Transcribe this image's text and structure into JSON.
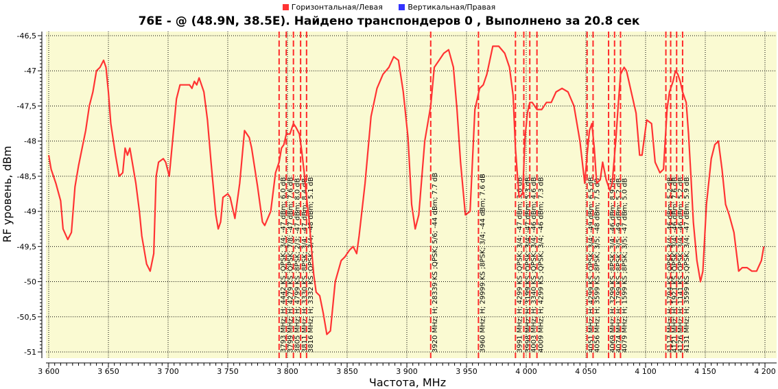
{
  "legend": [
    {
      "label": "Горизонтальная/Левая",
      "color": "#ff3333"
    },
    {
      "label": "Вертикальная/Правая",
      "color": "#3333ff"
    }
  ],
  "title": "76E -  @  (48.9N, 38.5E). Найдено транспондеров 0 , Выполнено за 20.8 сек",
  "chart_data": {
    "type": "line",
    "title": "76E -  @  (48.9N, 38.5E). Найдено транспондеров 0 , Выполнено за 20.8 сек",
    "xlabel": "Частота, MHz",
    "ylabel": "RF уровень, dBm",
    "xlim": [
      3600,
      4200
    ],
    "ylim": [
      -51,
      -46.5
    ],
    "x_ticks": [
      3600,
      3650,
      3700,
      3750,
      3800,
      3850,
      3900,
      3950,
      4000,
      4050,
      4100,
      4150,
      4200
    ],
    "x_tick_labels": [
      "3 600",
      "3 650",
      "3 700",
      "3 750",
      "3 800",
      "3 850",
      "3 900",
      "3 950",
      "4 000",
      "4 050",
      "4 100",
      "4 150",
      "4 200"
    ],
    "y_ticks": [
      -46.5,
      -47,
      -47.5,
      -48,
      -48.5,
      -49,
      -49.5,
      -50,
      -50.5,
      -51
    ],
    "y_tick_labels": [
      "-46,5",
      "-47",
      "-47,5",
      "-48",
      "-48,5",
      "-49",
      "-49,5",
      "-50",
      "-50,5",
      "-51"
    ],
    "grid": true,
    "legend_position": "top",
    "background": "#fafad2",
    "series": [
      {
        "name": "Горизонтальная/Левая",
        "color": "#ff3333",
        "x": [
          3600,
          3602,
          3606,
          3610,
          3612,
          3616,
          3619,
          3622,
          3625,
          3628,
          3631,
          3634,
          3637,
          3640,
          3643,
          3646,
          3648,
          3650,
          3652,
          3656,
          3659,
          3662,
          3664,
          3666,
          3668,
          3670,
          3673,
          3676,
          3678,
          3682,
          3685,
          3688,
          3690,
          3692,
          3696,
          3698,
          3701,
          3704,
          3707,
          3710,
          3714,
          3718,
          3720,
          3722,
          3724,
          3726,
          3728,
          3730,
          3733,
          3736,
          3740,
          3742,
          3744,
          3746,
          3750,
          3752,
          3756,
          3760,
          3764,
          3768,
          3770,
          3775,
          3779,
          3781,
          3786,
          3790,
          3793,
          3795,
          3797,
          3799,
          3802,
          3805,
          3807,
          3810,
          3812,
          3814,
          3816,
          3818,
          3820,
          3822,
          3824,
          3827,
          3830,
          3833,
          3836,
          3840,
          3845,
          3848,
          3852,
          3855,
          3858,
          3860,
          3865,
          3870,
          3875,
          3880,
          3885,
          3889,
          3893,
          3897,
          3901,
          3904,
          3907,
          3910,
          3915,
          3920,
          3923,
          3927,
          3931,
          3935,
          3939,
          3942,
          3945,
          3949,
          3953,
          3957,
          3961,
          3964,
          3967,
          3972,
          3977,
          3982,
          3986,
          3989,
          3991,
          3994,
          3997,
          3999,
          4001,
          4003,
          4005,
          4009,
          4013,
          4017,
          4021,
          4025,
          4030,
          4035,
          4040,
          4045,
          4049,
          4051,
          4053,
          4055,
          4057,
          4059,
          4062,
          4064,
          4067,
          4070,
          4072,
          4075,
          4077,
          4079,
          4082,
          4084,
          4088,
          4092,
          4095,
          4097,
          4101,
          4105,
          4108,
          4112,
          4115,
          4118,
          4120,
          4123,
          4125,
          4127,
          4129,
          4131,
          4134,
          4136,
          4138,
          4140,
          4143,
          4146,
          4148,
          4151,
          4155,
          4158,
          4161,
          4164,
          4167,
          4170,
          4174,
          4178,
          4181,
          4185,
          4189,
          4193,
          4197,
          4199
        ],
        "y": [
          -48.2,
          -48.4,
          -48.6,
          -48.85,
          -49.25,
          -49.4,
          -49.3,
          -48.65,
          -48.35,
          -48.1,
          -47.85,
          -47.5,
          -47.3,
          -47.0,
          -46.95,
          -46.85,
          -46.95,
          -47.3,
          -47.75,
          -48.2,
          -48.5,
          -48.45,
          -48.1,
          -48.2,
          -48.1,
          -48.3,
          -48.6,
          -49.0,
          -49.35,
          -49.75,
          -49.85,
          -49.6,
          -48.5,
          -48.3,
          -48.25,
          -48.3,
          -48.5,
          -47.95,
          -47.4,
          -47.2,
          -47.2,
          -47.2,
          -47.25,
          -47.15,
          -47.2,
          -47.1,
          -47.2,
          -47.3,
          -47.7,
          -48.3,
          -49.05,
          -49.25,
          -49.15,
          -48.8,
          -48.75,
          -48.8,
          -49.1,
          -48.6,
          -47.85,
          -47.95,
          -48.1,
          -48.65,
          -49.15,
          -49.2,
          -49.0,
          -48.45,
          -48.3,
          -48.1,
          -48.05,
          -47.9,
          -47.9,
          -47.75,
          -47.8,
          -47.9,
          -48.15,
          -48.45,
          -48.8,
          -49.1,
          -49.5,
          -49.9,
          -50.15,
          -50.2,
          -50.45,
          -50.75,
          -50.7,
          -50.0,
          -49.7,
          -49.65,
          -49.55,
          -49.5,
          -49.6,
          -49.35,
          -48.6,
          -47.65,
          -47.25,
          -47.05,
          -46.95,
          -46.8,
          -46.85,
          -47.3,
          -47.95,
          -48.9,
          -49.25,
          -49.05,
          -48.0,
          -47.5,
          -46.95,
          -46.85,
          -46.75,
          -46.7,
          -46.95,
          -47.55,
          -48.3,
          -49.05,
          -49.0,
          -47.55,
          -47.25,
          -47.2,
          -47.05,
          -46.65,
          -46.65,
          -46.75,
          -46.95,
          -47.35,
          -48.1,
          -48.8,
          -48.75,
          -47.95,
          -47.6,
          -47.45,
          -47.45,
          -47.55,
          -47.55,
          -47.45,
          -47.45,
          -47.3,
          -47.25,
          -47.3,
          -47.5,
          -48.0,
          -48.6,
          -48.2,
          -47.85,
          -47.75,
          -48.1,
          -48.6,
          -48.55,
          -48.3,
          -48.55,
          -48.7,
          -48.6,
          -48.0,
          -47.5,
          -47.05,
          -46.95,
          -47.0,
          -47.3,
          -47.6,
          -48.2,
          -48.2,
          -47.7,
          -47.75,
          -48.3,
          -48.45,
          -48.4,
          -47.55,
          -47.3,
          -47.15,
          -47.0,
          -47.05,
          -47.15,
          -47.3,
          -47.45,
          -47.9,
          -48.5,
          -49.15,
          -49.7,
          -50.0,
          -49.85,
          -48.9,
          -48.25,
          -48.05,
          -48.0,
          -48.4,
          -48.9,
          -49.05,
          -49.3,
          -49.85,
          -49.8,
          -49.8,
          -49.85,
          -49.85,
          -49.7,
          -49.5
        ]
      },
      {
        "name": "Вертикальная/Правая",
        "color": "#3333ff",
        "x": [],
        "y": []
      }
    ],
    "transponder_markers": [
      {
        "freq": 3793,
        "label": "3793 MHz; H; 4442 KS ;QPSK; 3/4; -47 dBm; 6.0 dB"
      },
      {
        "freq": 3799,
        "label": "3799 MHz; H; 4279 KS ;QPSK; 7/8; -47 dBm; 7.6 dB"
      },
      {
        "freq": 3805,
        "label": "3805 MHz; H; 4799 KS ;8PSK; 2/3; -47 dBm; 8.0 dB"
      },
      {
        "freq": 3811,
        "label": "3811 MHz; H; 3330 KS ;8PSK; 3/4; -47 dBm; 8.4 dB"
      },
      {
        "freq": 3816,
        "label": "3816 MHz; H; 3332 KS ;QPSK; 3/4; -48 dBm; 5.1 dB"
      },
      {
        "freq": 3920,
        "label": "3920 MHz; H; 28339 KS ;QPSK; 5/6; -44 dBm; 7.7 dB"
      },
      {
        "freq": 3960,
        "label": "3960 MHz; H; 29999 KS ;8PSK; 3/4; -44 dBm; 7.6 dB"
      },
      {
        "freq": 3991,
        "label": "3991 MHz; H; 4299 KS ;QPSK; 3/4; -47 dBm; 3.6 dB"
      },
      {
        "freq": 3998,
        "label": "3998 MHz; H; 3199 KS ;QPSK; 3/4; -47 dBm; 5.3 dB"
      },
      {
        "freq": 4003,
        "label": "4003 MHz; H; 3340 KS ;QPSK; 3/4; -46 dBm; 4.6 dB"
      },
      {
        "freq": 4009,
        "label": "4009 MHz; H; 4299 KS ;QPSK; 3/4; -46 dBm; 7.3 dB"
      },
      {
        "freq": 4051,
        "label": "4051 MHz; H; 4299 KS ;QPSK; 3/4; -49 dBm; 6.5 dB"
      },
      {
        "freq": 4056,
        "label": "4056 MHz; H; 3599 KS ;8PSK; 3/5; -48 dBm; 7.5 dB"
      },
      {
        "freq": 4069,
        "label": "4069 MHz; H; 3299 KS ;8PSK; 3/4; -46 dBm; 8.9 dB"
      },
      {
        "freq": 4074,
        "label": "4074 MHz; H; 1799 KS ;8PSK; 3/5; -49 dBm; 5.2 dB"
      },
      {
        "freq": 4079,
        "label": "4079 MHz; H; 1599 KS ;8PSK; 3/5; -47 dBm; 5.0 dB"
      },
      {
        "freq": 4117,
        "label": "4117 MHz; H; 1794 KS ;QPSK; 3/4; -46 dBm; 5.2 dB"
      },
      {
        "freq": 4121,
        "label": "4121 MHz; H; 1921 KS ;QPSK; 3/4; -46 dBm; 7.6 dB"
      },
      {
        "freq": 4126,
        "label": "4126 MHz; H; 1141 KS ;QPSK; 3/4; -46 dBm; 5.2 dB"
      },
      {
        "freq": 4131,
        "label": "4131 MHz; H; 3599 KS ;QPSK; 3/4; -47 dBm; 5.9 dB"
      }
    ]
  }
}
